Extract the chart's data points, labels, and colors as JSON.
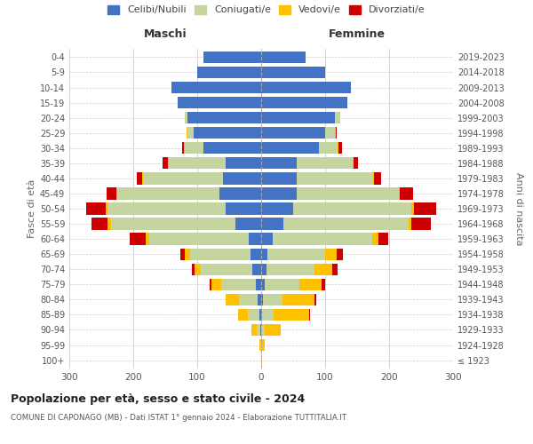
{
  "age_groups": [
    "100+",
    "95-99",
    "90-94",
    "85-89",
    "80-84",
    "75-79",
    "70-74",
    "65-69",
    "60-64",
    "55-59",
    "50-54",
    "45-49",
    "40-44",
    "35-39",
    "30-34",
    "25-29",
    "20-24",
    "15-19",
    "10-14",
    "5-9",
    "0-4"
  ],
  "birth_years": [
    "≤ 1923",
    "1924-1928",
    "1929-1933",
    "1934-1938",
    "1939-1943",
    "1944-1948",
    "1949-1953",
    "1954-1958",
    "1959-1963",
    "1964-1968",
    "1969-1973",
    "1974-1978",
    "1979-1983",
    "1984-1988",
    "1989-1993",
    "1994-1998",
    "1999-2003",
    "2004-2008",
    "2009-2013",
    "2014-2018",
    "2019-2023"
  ],
  "colors": {
    "celibi": "#4472c4",
    "coniugati": "#c5d5a0",
    "vedovi": "#ffc000",
    "divorziati": "#cc0000"
  },
  "maschi": {
    "celibi": [
      0,
      0,
      2,
      3,
      5,
      8,
      14,
      16,
      20,
      40,
      55,
      65,
      60,
      55,
      90,
      105,
      115,
      130,
      140,
      100,
      90
    ],
    "coniugati": [
      0,
      1,
      5,
      18,
      30,
      55,
      80,
      95,
      155,
      195,
      185,
      160,
      125,
      90,
      30,
      10,
      5,
      0,
      0,
      0,
      0
    ],
    "vedovi": [
      0,
      2,
      8,
      15,
      20,
      15,
      10,
      8,
      5,
      5,
      3,
      2,
      1,
      1,
      1,
      1,
      0,
      0,
      0,
      0,
      0
    ],
    "divorziati": [
      0,
      0,
      0,
      0,
      1,
      2,
      5,
      8,
      25,
      25,
      30,
      15,
      8,
      8,
      3,
      1,
      0,
      0,
      0,
      0,
      0
    ]
  },
  "femmine": {
    "celibi": [
      0,
      0,
      0,
      2,
      3,
      5,
      8,
      10,
      18,
      35,
      50,
      55,
      55,
      55,
      90,
      100,
      115,
      135,
      140,
      100,
      70
    ],
    "coniugati": [
      0,
      0,
      5,
      18,
      30,
      55,
      75,
      90,
      155,
      195,
      185,
      160,
      120,
      88,
      30,
      15,
      8,
      0,
      0,
      0,
      0
    ],
    "vedovi": [
      2,
      5,
      25,
      55,
      50,
      35,
      28,
      18,
      10,
      5,
      4,
      2,
      2,
      1,
      1,
      1,
      0,
      0,
      0,
      0,
      0
    ],
    "divorziati": [
      0,
      0,
      0,
      2,
      3,
      5,
      8,
      10,
      15,
      30,
      35,
      20,
      10,
      8,
      5,
      2,
      0,
      0,
      0,
      0,
      0
    ]
  },
  "title_main": "Popolazione per età, sesso e stato civile - 2024",
  "title_sub": "COMUNE DI CAPONAGO (MB) - Dati ISTAT 1° gennaio 2024 - Elaborazione TUTTITALIA.IT",
  "ylabel_left": "Maschi",
  "ylabel_right": "Femmine",
  "ylabel_center_left": "Fasce di età",
  "ylabel_center_right": "Anni di nascita",
  "xlim": 300,
  "legend_labels": [
    "Celibi/Nubili",
    "Coniugati/e",
    "Vedovi/e",
    "Divorziati/e"
  ],
  "background_color": "#ffffff",
  "grid_color": "#cccccc"
}
